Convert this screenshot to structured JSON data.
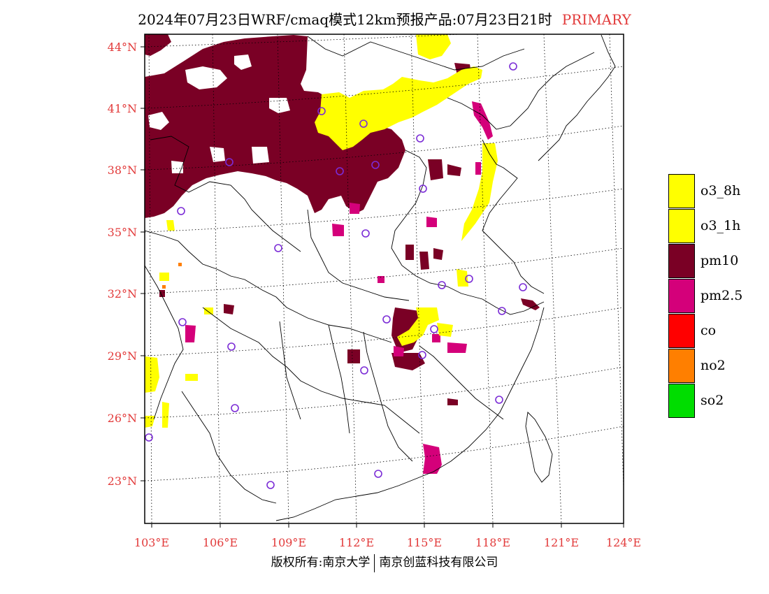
{
  "title": {
    "main": "2024年07月23日WRF/cmaq模式12km预报产品:07月23日21时",
    "tag": "PRIMARY",
    "tag_color": "#e23a3a"
  },
  "map": {
    "lat_ticks": [
      44,
      41,
      38,
      35,
      32,
      29,
      26,
      23
    ],
    "lat_labels": [
      "44°N",
      "41°N",
      "38°N",
      "35°N",
      "32°N",
      "29°N",
      "26°N",
      "23°N"
    ],
    "lon_ticks": [
      103,
      106,
      109,
      112,
      115,
      118,
      121,
      124
    ],
    "lon_labels": [
      "103°E",
      "106°E",
      "109°E",
      "112°E",
      "115°E",
      "118°E",
      "121°E",
      "124°E"
    ],
    "station_marker": "purple-circle-icon",
    "station_color": "#7b2cd6"
  },
  "legend": {
    "items": [
      {
        "label": "o3_8h",
        "color": "#ffff00"
      },
      {
        "label": "o3_1h",
        "color": "#ffff00"
      },
      {
        "label": "pm10",
        "color": "#7a0025"
      },
      {
        "label": "pm2.5",
        "color": "#d4007a"
      },
      {
        "label": "co",
        "color": "#ff0000"
      },
      {
        "label": "no2",
        "color": "#ff7f00"
      },
      {
        "label": "so2",
        "color": "#00dd00"
      }
    ]
  },
  "footer": {
    "left": "版权所有:南京大学",
    "right": "南京创蓝科技有限公司"
  }
}
